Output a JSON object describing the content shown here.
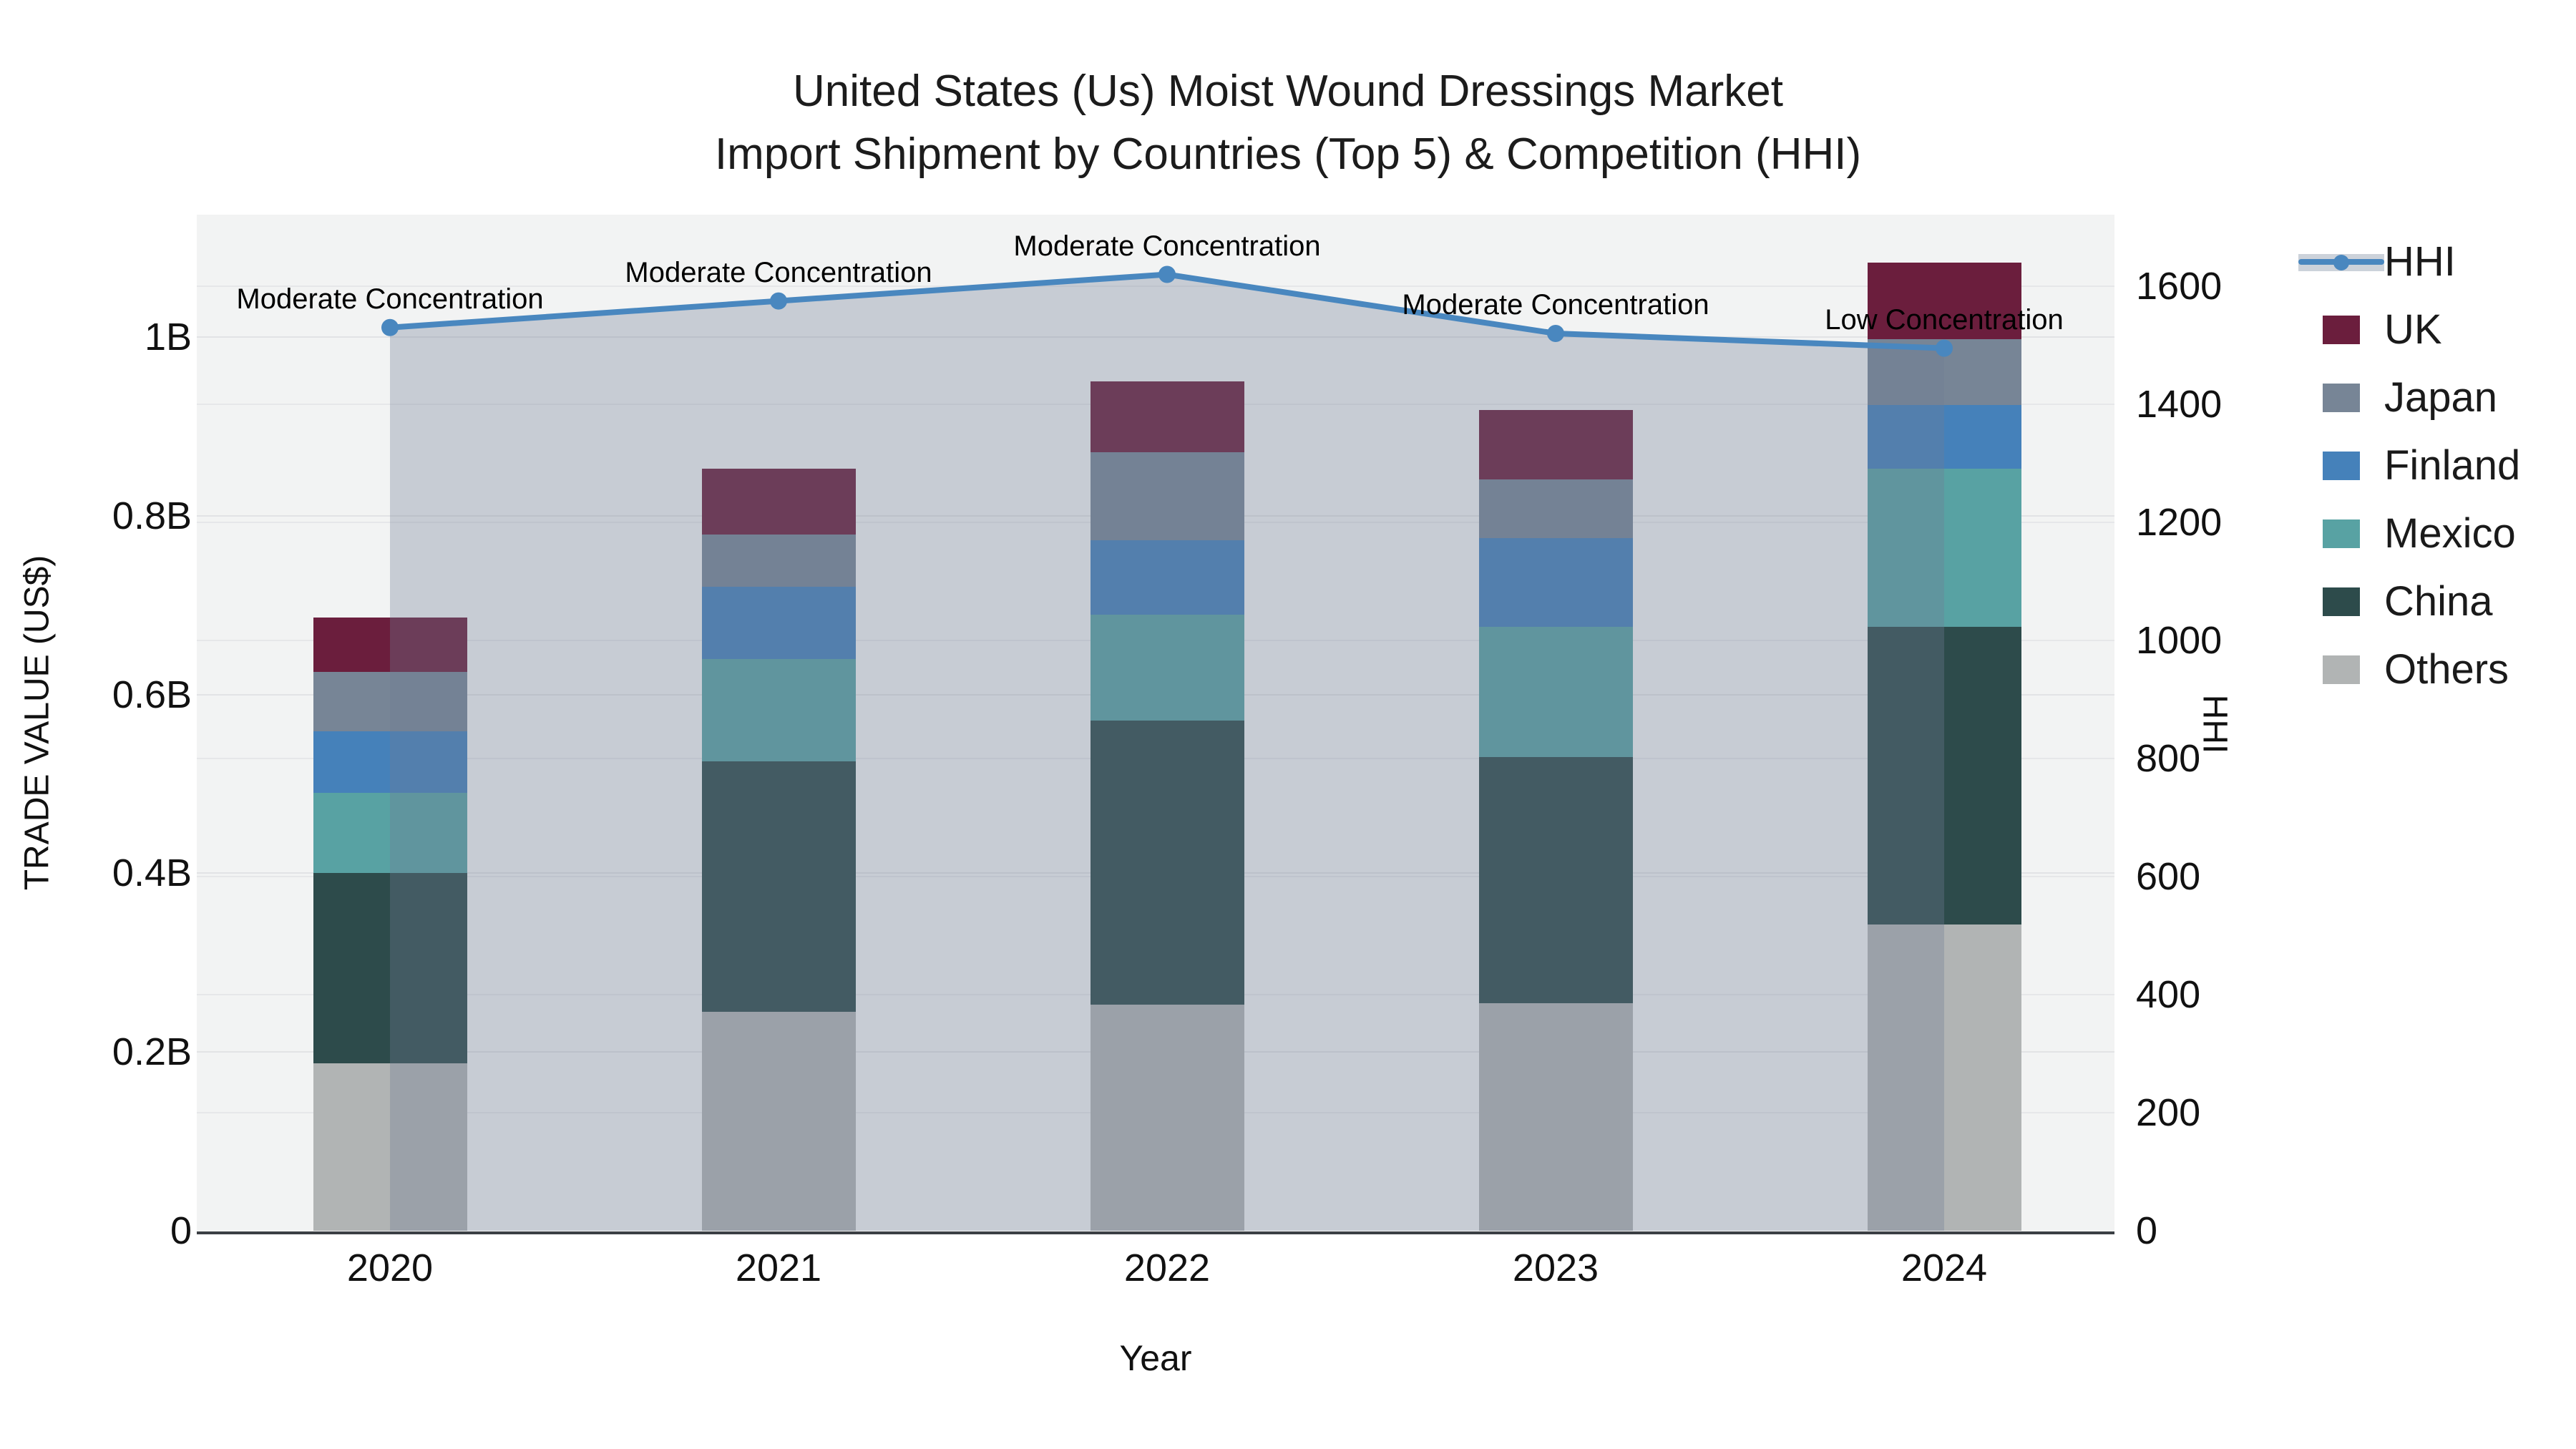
{
  "title": {
    "line1": "United States (Us) Moist Wound Dressings Market",
    "line2": "Import Shipment by Countries (Top 5) & Competition (HHI)"
  },
  "axes": {
    "x": {
      "label": "Year",
      "categories": [
        "2020",
        "2021",
        "2022",
        "2023",
        "2024"
      ]
    },
    "y_left": {
      "label": "TRADE VALUE (US$)",
      "unit": "billion US$",
      "tick_labels": [
        "0",
        "0.2B",
        "0.4B",
        "0.6B",
        "0.8B",
        "1B"
      ],
      "tick_values": [
        0,
        0.2,
        0.4,
        0.6,
        0.8,
        1.0
      ],
      "range": [
        0,
        1.14
      ]
    },
    "y_right": {
      "label": "HHI",
      "tick_min": 0,
      "tick_max": 1600,
      "tick_step": 200,
      "range": [
        0,
        1721
      ]
    }
  },
  "chart_data": {
    "type": "bar+line",
    "bar_mode": "stacked",
    "categories": [
      "2020",
      "2021",
      "2022",
      "2023",
      "2024"
    ],
    "value_unit": "billion US$",
    "series": [
      {
        "name": "Others",
        "color": "#b1b4b4",
        "values": [
          0.187,
          0.245,
          0.253,
          0.255,
          0.343
        ]
      },
      {
        "name": "China",
        "color": "#2d4b4b",
        "values": [
          0.213,
          0.28,
          0.318,
          0.275,
          0.333
        ]
      },
      {
        "name": "Mexico",
        "color": "#58a2a3",
        "values": [
          0.09,
          0.115,
          0.118,
          0.146,
          0.177
        ]
      },
      {
        "name": "Finland",
        "color": "#4581ba",
        "values": [
          0.069,
          0.081,
          0.084,
          0.099,
          0.071
        ]
      },
      {
        "name": "Japan",
        "color": "#778596",
        "values": [
          0.066,
          0.058,
          0.098,
          0.066,
          0.074
        ]
      },
      {
        "name": "UK",
        "color": "#6b1e3d",
        "values": [
          0.061,
          0.074,
          0.079,
          0.077,
          0.085
        ]
      }
    ],
    "line_series": {
      "name": "HHI",
      "axis": "right",
      "color": "#4987bf",
      "area_fill": "rgba(113,125,150,0.33)",
      "values": [
        1530,
        1575,
        1620,
        1520,
        1495
      ]
    },
    "annotations": [
      {
        "category": "2020",
        "text": "Moderate Concentration"
      },
      {
        "category": "2021",
        "text": "Moderate Concentration"
      },
      {
        "category": "2022",
        "text": "Moderate Concentration"
      },
      {
        "category": "2023",
        "text": "Moderate Concentration"
      },
      {
        "category": "2024",
        "text": "Low Concentration"
      }
    ],
    "legend_position": "right",
    "grid": true
  },
  "legend": {
    "items": [
      {
        "label": "HHI",
        "type": "line"
      },
      {
        "label": "UK",
        "type": "swatch"
      },
      {
        "label": "Japan",
        "type": "swatch"
      },
      {
        "label": "Finland",
        "type": "swatch"
      },
      {
        "label": "Mexico",
        "type": "swatch"
      },
      {
        "label": "China",
        "type": "swatch"
      },
      {
        "label": "Others",
        "type": "swatch"
      }
    ]
  }
}
